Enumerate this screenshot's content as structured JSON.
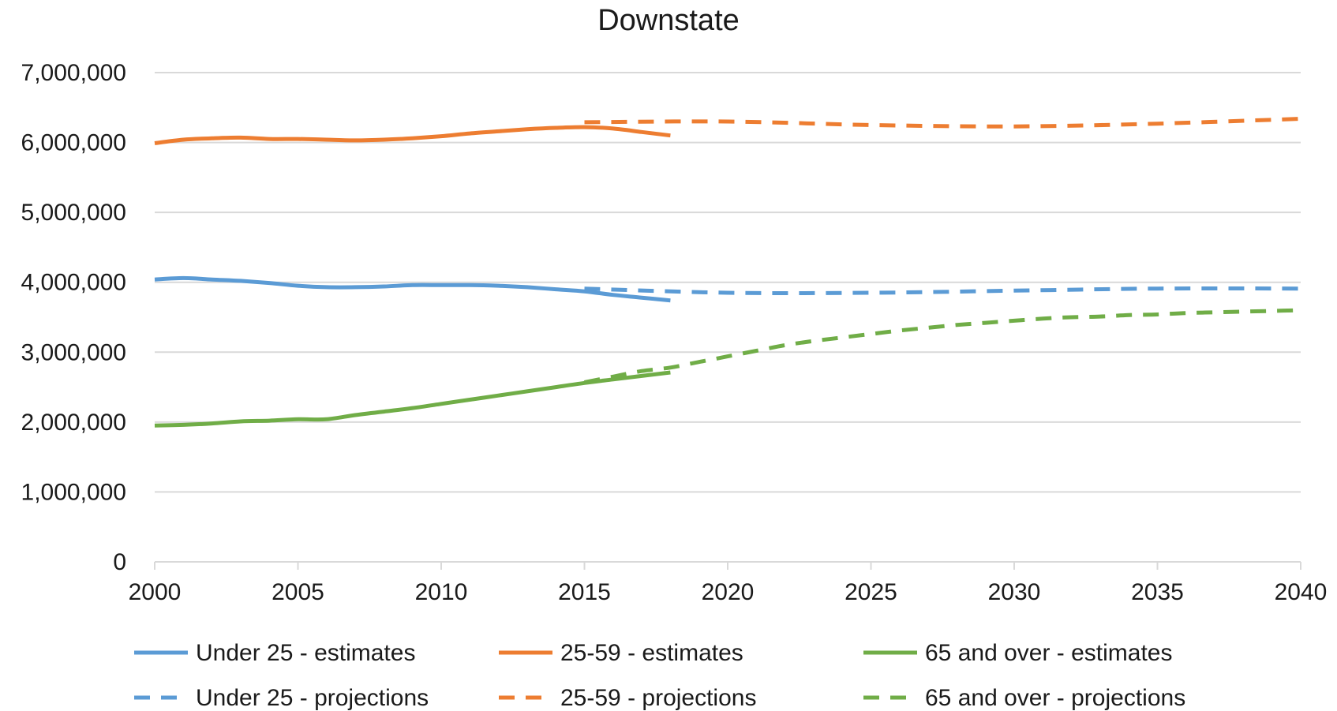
{
  "chart_data": {
    "type": "line",
    "title": "Downstate",
    "xlabel": "",
    "ylabel": "",
    "xlim": [
      2000,
      2040
    ],
    "ylim": [
      0,
      7000000
    ],
    "x_ticks": [
      "2000",
      "2005",
      "2010",
      "2015",
      "2020",
      "2025",
      "2030",
      "2035",
      "2040"
    ],
    "y_ticks": [
      "0",
      "1,000,000",
      "2,000,000",
      "3,000,000",
      "4,000,000",
      "5,000,000",
      "6,000,000",
      "7,000,000"
    ],
    "grid": "horizontal",
    "legend_position": "bottom",
    "series": [
      {
        "name": "Under 25 - estimates",
        "color": "#5B9BD5",
        "dash": "solid",
        "x": [
          2000,
          2001,
          2002,
          2003,
          2004,
          2005,
          2006,
          2007,
          2008,
          2009,
          2010,
          2011,
          2012,
          2013,
          2014,
          2015,
          2016,
          2017,
          2018
        ],
        "y": [
          4040000,
          4060000,
          4040000,
          4020000,
          3990000,
          3950000,
          3930000,
          3930000,
          3940000,
          3960000,
          3960000,
          3960000,
          3950000,
          3930000,
          3900000,
          3870000,
          3820000,
          3780000,
          3740000
        ]
      },
      {
        "name": "25-59 - estimates",
        "color": "#ED7D31",
        "dash": "solid",
        "x": [
          2000,
          2001,
          2002,
          2003,
          2004,
          2005,
          2006,
          2007,
          2008,
          2009,
          2010,
          2011,
          2012,
          2013,
          2014,
          2015,
          2016,
          2017,
          2018
        ],
        "y": [
          5990000,
          6040000,
          6060000,
          6070000,
          6050000,
          6050000,
          6040000,
          6030000,
          6040000,
          6060000,
          6090000,
          6130000,
          6160000,
          6190000,
          6210000,
          6220000,
          6200000,
          6150000,
          6100000
        ]
      },
      {
        "name": "65 and over - estimates",
        "color": "#70AD47",
        "dash": "solid",
        "x": [
          2000,
          2001,
          2002,
          2003,
          2004,
          2005,
          2006,
          2007,
          2008,
          2009,
          2010,
          2011,
          2012,
          2013,
          2014,
          2015,
          2016,
          2017,
          2018
        ],
        "y": [
          1950000,
          1960000,
          1980000,
          2010000,
          2020000,
          2040000,
          2040000,
          2100000,
          2150000,
          2200000,
          2260000,
          2320000,
          2380000,
          2440000,
          2500000,
          2560000,
          2610000,
          2660000,
          2710000
        ]
      },
      {
        "name": "Under 25 - projections",
        "color": "#5B9BD5",
        "dash": "dashed",
        "x": [
          2015,
          2020,
          2025,
          2030,
          2035,
          2040
        ],
        "y": [
          3910000,
          3850000,
          3850000,
          3880000,
          3910000,
          3910000
        ]
      },
      {
        "name": "25-59 - projections",
        "color": "#ED7D31",
        "dash": "dashed",
        "x": [
          2015,
          2020,
          2025,
          2030,
          2035,
          2040
        ],
        "y": [
          6290000,
          6300000,
          6250000,
          6230000,
          6270000,
          6340000
        ]
      },
      {
        "name": "65 and over - projections",
        "color": "#70AD47",
        "dash": "dashed",
        "x": [
          2015,
          2016,
          2017,
          2018,
          2019,
          2020,
          2021,
          2022,
          2023,
          2024,
          2025,
          2026,
          2027,
          2028,
          2029,
          2030,
          2031,
          2032,
          2033,
          2034,
          2035,
          2036,
          2037,
          2038,
          2039,
          2040
        ],
        "y": [
          2570000,
          2650000,
          2730000,
          2780000,
          2860000,
          2940000,
          3020000,
          3100000,
          3160000,
          3210000,
          3260000,
          3310000,
          3350000,
          3390000,
          3420000,
          3450000,
          3480000,
          3500000,
          3510000,
          3530000,
          3540000,
          3560000,
          3570000,
          3580000,
          3590000,
          3600000
        ]
      }
    ]
  }
}
